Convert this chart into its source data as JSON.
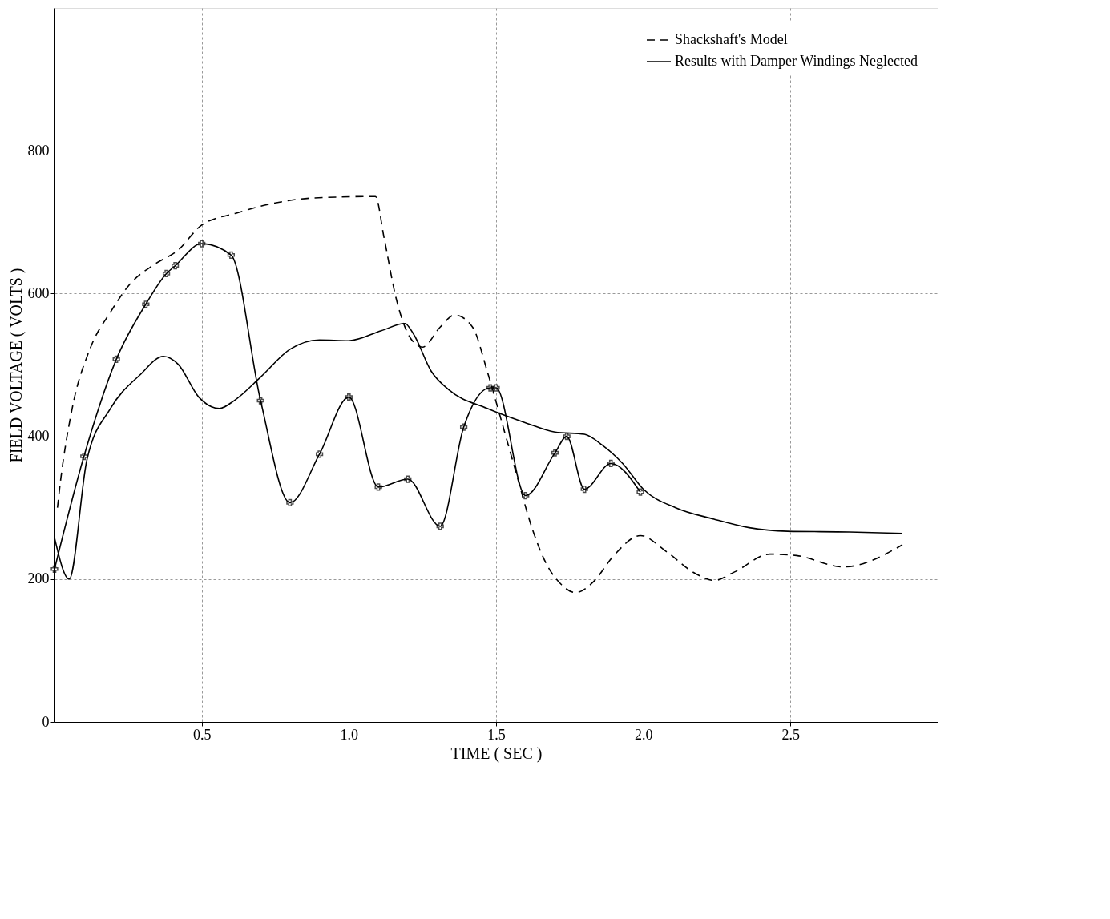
{
  "chart_data": {
    "type": "line",
    "xlabel": "TIME ( SEC )",
    "ylabel": "FIELD VOLTAGE ( VOLTS )",
    "xlim": [
      0,
      3.0
    ],
    "ylim": [
      0,
      1000
    ],
    "xticks": [
      {
        "value": 0.5,
        "label": "0.5"
      },
      {
        "value": 1.0,
        "label": "1.0"
      },
      {
        "value": 1.5,
        "label": "1.5"
      },
      {
        "value": 2.0,
        "label": "2.0"
      },
      {
        "value": 2.5,
        "label": "2.5"
      }
    ],
    "yticks": [
      0,
      200,
      400,
      600,
      800
    ],
    "grid": true,
    "legend": "top right",
    "series": [
      {
        "color": "#000000",
        "line_style": "solid",
        "marker": "none",
        "x": [
          0,
          0.05,
          0.11,
          0.19,
          0.29,
          0.37,
          0.42,
          0.49,
          0.56,
          0.61,
          0.7,
          0.8,
          0.9,
          1.0,
          1.11,
          1.19,
          1.22,
          1.28,
          1.34,
          1.47,
          1.6,
          1.7,
          1.8,
          1.86,
          1.93,
          2.0,
          2.11,
          2.24,
          2.36,
          2.49,
          2.7,
          2.88
        ],
        "values": [
          258,
          200,
          367,
          439,
          486,
          512,
          501,
          455,
          439,
          450,
          483,
          522,
          535,
          534,
          548,
          558,
          543,
          491,
          465,
          439,
          419,
          406,
          403,
          388,
          362,
          326,
          300,
          284,
          272,
          267,
          266,
          264
        ]
      },
      {
        "name": "Shackshaft's Model",
        "color": "#000000",
        "line_style": "dashed",
        "marker": "none",
        "x": [
          0.01,
          0.02,
          0.06,
          0.12,
          0.19,
          0.26,
          0.34,
          0.42,
          0.5,
          0.62,
          0.75,
          0.88,
          1.09,
          1.12,
          1.16,
          1.21,
          1.25,
          1.31,
          1.36,
          1.42,
          1.47,
          1.52,
          1.57,
          1.62,
          1.67,
          1.72,
          1.77,
          1.83,
          1.9,
          1.99,
          2.08,
          2.18,
          2.24,
          2.31,
          2.43,
          2.52,
          2.68,
          2.88
        ],
        "values": [
          300,
          336,
          439,
          522,
          574,
          615,
          641,
          661,
          696,
          713,
          727,
          734,
          736,
          677,
          594,
          537,
          525,
          553,
          570,
          553,
          491,
          419,
          346,
          274,
          222,
          193,
          181,
          196,
          233,
          261,
          238,
          207,
          198,
          210,
          235,
          233,
          217,
          248
        ]
      },
      {
        "name": "Results with Damper Windings Neglected",
        "color": "#000000",
        "line_style": "solid",
        "marker": "cross",
        "x": [
          0,
          0.1,
          0.21,
          0.31,
          0.38,
          0.41,
          0.5,
          0.6,
          0.7,
          0.8,
          0.9,
          1.0,
          1.1,
          1.2,
          1.31,
          1.39,
          1.48,
          1.5,
          1.6,
          1.7,
          1.74,
          1.8,
          1.89,
          1.99
        ],
        "values": [
          214,
          372,
          508,
          585,
          628,
          639,
          670,
          654,
          450,
          307,
          375,
          455,
          329,
          340,
          274,
          413,
          468,
          468,
          317,
          377,
          400,
          326,
          362,
          322
        ]
      }
    ]
  }
}
